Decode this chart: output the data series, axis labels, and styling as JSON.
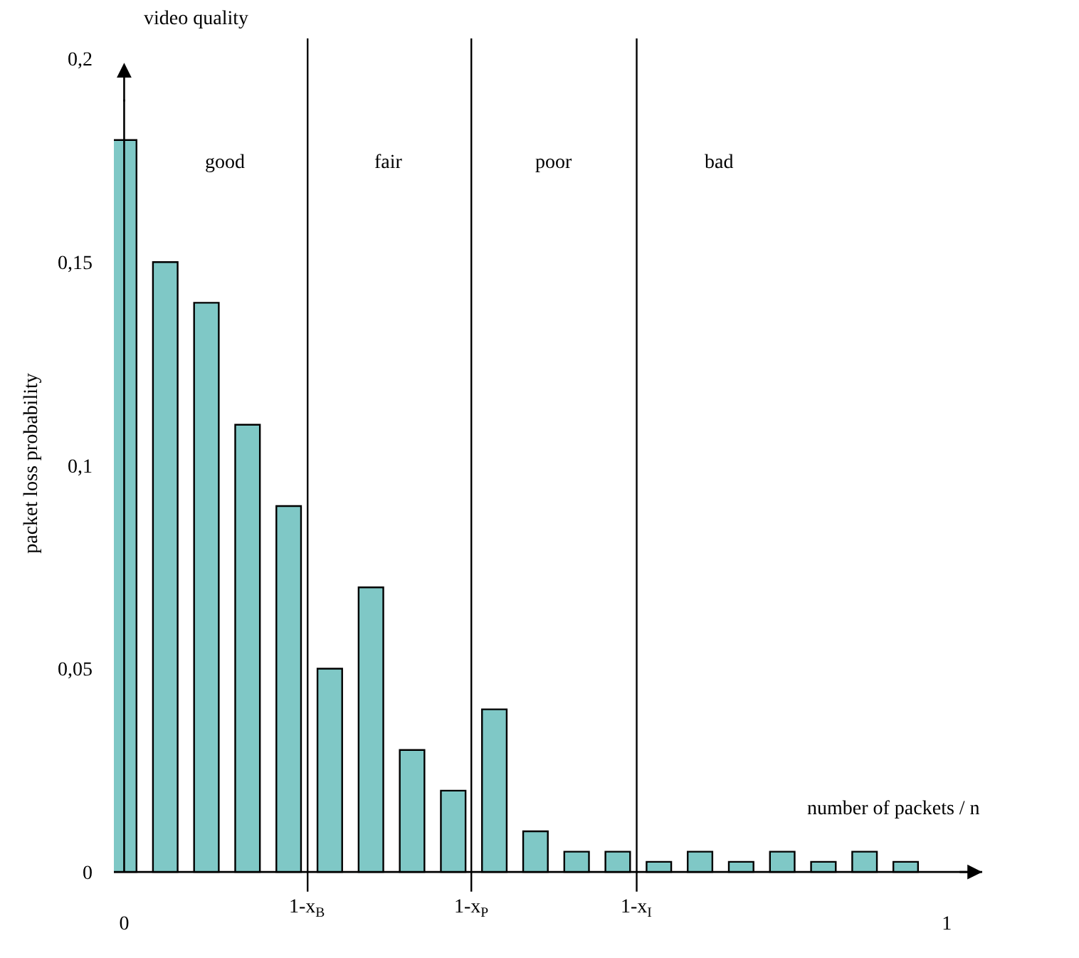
{
  "chart_data": {
    "type": "bar",
    "xlabel": "number of packets / n",
    "ylabel": "packet loss probability",
    "x": [
      0,
      0.05,
      0.1,
      0.15,
      0.2,
      0.25,
      0.3,
      0.35,
      0.4,
      0.45,
      0.5,
      0.55,
      0.6,
      0.65,
      0.7,
      0.75,
      0.8,
      0.85,
      0.9,
      0.95
    ],
    "values": [
      0.18,
      0.15,
      0.14,
      0.11,
      0.09,
      0.05,
      0.07,
      0.03,
      0.02,
      0.04,
      0.01,
      0.005,
      0.005,
      0.0025,
      0.005,
      0.0025,
      0.005,
      0.0025,
      0.005,
      0.0025
    ],
    "color": "#7fc8c6",
    "xlim": [
      -0.0125,
      1.043
    ],
    "ylim": [
      -0.004,
      0.205
    ],
    "xticks": [
      0,
      1
    ],
    "yticks": [
      0,
      {
        "value": 0.05,
        "label": "0,05"
      },
      {
        "value": 0.1,
        "label": "0,1"
      },
      {
        "value": 0.15,
        "label": "0,15"
      },
      {
        "value": 0.2,
        "label": "0,2"
      }
    ],
    "ref_lines": [
      {
        "axis": "x",
        "value": 0.223,
        "label": "1-x$_{B}$"
      },
      {
        "axis": "x",
        "value": 0.422,
        "label": "1-x$_{P}$"
      },
      {
        "axis": "x",
        "value": 0.623,
        "label": "1-x$_{I}$"
      }
    ],
    "annotations": [
      "video quality",
      "good",
      "fair",
      "poor",
      "bad"
    ]
  }
}
